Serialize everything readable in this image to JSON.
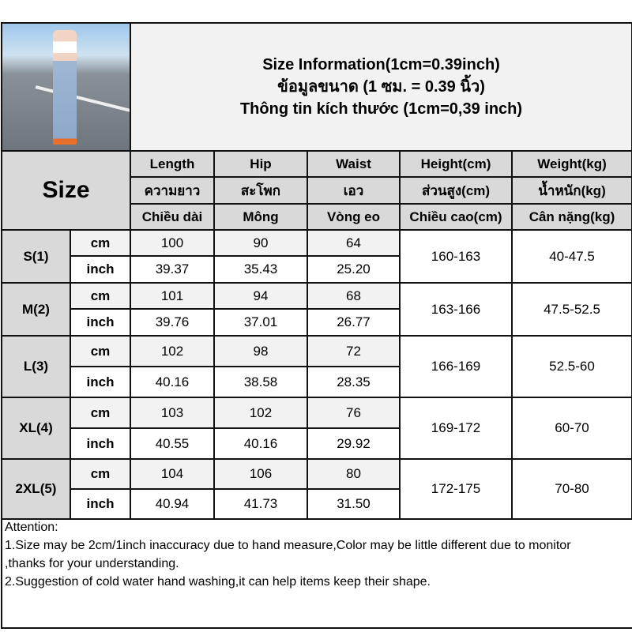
{
  "title": {
    "en": "Size Information(1cm=0.39inch)",
    "th": "ข้อมูลขนาด (1 ซม. = 0.39 นิ้ว)",
    "vi": "Thông tin kích thước (1cm=0,39 inch)"
  },
  "size_header": "Size",
  "columns": [
    {
      "en": "Length",
      "th": "ความยาว",
      "vi": "Chiều dài"
    },
    {
      "en": "Hip",
      "th": "สะโพก",
      "vi": "Mông"
    },
    {
      "en": "Waist",
      "th": "เอว",
      "vi": "Vòng eo"
    },
    {
      "en": "Height(cm)",
      "th": "ส่วนสูง(cm)",
      "vi": "Chiều cao(cm)"
    },
    {
      "en": "Weight(kg)",
      "th": "น้ำหนัก(kg)",
      "vi": "Cân nặng(kg)"
    }
  ],
  "units": {
    "cm": "cm",
    "inch": "inch"
  },
  "rows": [
    {
      "size": "S(1)",
      "cm": [
        "100",
        "90",
        "64"
      ],
      "inch": [
        "39.37",
        "35.43",
        "25.20"
      ],
      "height": "160-163",
      "weight": "40-47.5"
    },
    {
      "size": "M(2)",
      "cm": [
        "101",
        "94",
        "68"
      ],
      "inch": [
        "39.76",
        "37.01",
        "26.77"
      ],
      "height": "163-166",
      "weight": "47.5-52.5"
    },
    {
      "size": "L(3)",
      "cm": [
        "102",
        "98",
        "72"
      ],
      "inch": [
        "40.16",
        "38.58",
        "28.35"
      ],
      "height": "166-169",
      "weight": "52.5-60"
    },
    {
      "size": "XL(4)",
      "cm": [
        "103",
        "102",
        "76"
      ],
      "inch": [
        "40.55",
        "40.16",
        "29.92"
      ],
      "height": "169-172",
      "weight": "60-70"
    },
    {
      "size": "2XL(5)",
      "cm": [
        "104",
        "106",
        "80"
      ],
      "inch": [
        "40.94",
        "41.73",
        "31.50"
      ],
      "height": "172-175",
      "weight": "70-80"
    }
  ],
  "attention": [
    "Attention:",
    "1.Size may be 2cm/1inch inaccuracy due to hand measure,Color may be little different due to monitor",
    ",thanks for your understanding.",
    "2.Suggestion of cold water hand washing,it can help items keep their shape."
  ]
}
